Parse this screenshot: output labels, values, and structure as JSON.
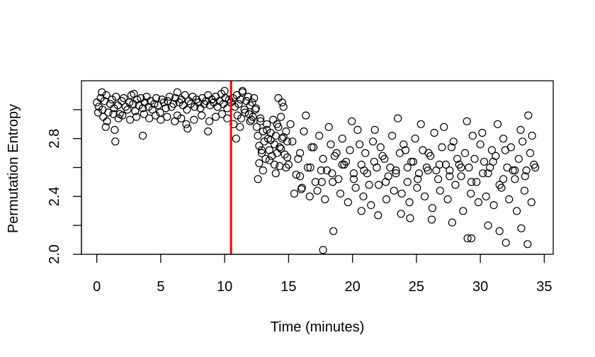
{
  "chart_data": {
    "type": "scatter",
    "title": "",
    "xlabel": "Time (minutes)",
    "ylabel": "Permutation Entropy",
    "xlim": [
      -1.2,
      35.7
    ],
    "ylim": [
      2.0,
      3.2
    ],
    "xticks": [
      0,
      5,
      10,
      15,
      20,
      25,
      30,
      35
    ],
    "yticks": [
      2.0,
      2.2,
      2.4,
      2.6,
      2.8,
      3.0
    ],
    "ytick_labels": [
      {
        "value": 2.0,
        "label": "2.0"
      },
      {
        "value": 2.4,
        "label": "2.4"
      },
      {
        "value": 2.8,
        "label": "2.8"
      }
    ],
    "grid": false,
    "legend": "none",
    "marker": "open-circle",
    "point_color": "#000000",
    "vline": {
      "x": 10.5,
      "color": "#ff0000"
    },
    "series": [
      {
        "x": [
          0.0,
          0.15,
          0.3,
          0.45,
          0.6,
          0.75,
          0.9,
          1.05,
          1.2,
          1.35,
          1.5,
          1.65,
          1.8,
          1.95,
          2.1,
          2.25,
          2.4,
          2.55,
          2.7,
          2.85,
          3.0,
          3.15,
          3.3,
          3.45,
          3.6,
          3.75,
          3.9,
          4.05,
          4.2,
          4.35,
          4.5,
          4.65,
          4.8,
          4.95,
          5.1,
          5.25,
          5.4,
          5.55,
          5.7,
          5.85,
          6.0,
          6.15,
          6.3,
          6.45,
          6.6,
          6.75,
          6.9,
          7.05,
          7.2,
          7.35,
          7.5,
          7.65,
          7.8,
          7.95,
          8.1,
          8.25,
          8.4,
          8.55,
          8.7,
          8.85,
          9.0,
          9.15,
          9.3,
          9.45,
          9.6,
          9.75,
          9.9,
          10.05,
          10.2,
          10.35,
          0.1,
          0.5,
          0.8,
          1.3,
          1.7,
          2.0,
          2.6,
          3.1,
          3.7,
          4.1,
          4.6,
          5.0,
          5.5,
          6.1,
          6.6,
          7.0,
          7.6,
          8.2,
          8.8,
          9.3,
          9.8,
          10.2,
          0.7,
          1.4,
          1.45,
          3.6,
          7.1,
          8.7,
          0.4,
          2.9,
          6.3,
          10.0
        ],
        "y": [
          3.05,
          3.02,
          3.08,
          3.0,
          3.06,
          3.1,
          2.98,
          3.04,
          3.07,
          3.01,
          3.09,
          3.03,
          2.97,
          3.06,
          3.08,
          3.02,
          3.0,
          3.05,
          3.1,
          3.04,
          2.99,
          3.07,
          3.03,
          3.08,
          3.01,
          3.05,
          3.09,
          3.02,
          3.06,
          3.0,
          3.04,
          3.08,
          3.03,
          2.98,
          3.07,
          3.05,
          3.01,
          3.06,
          3.09,
          3.02,
          3.04,
          3.08,
          2.96,
          3.05,
          3.07,
          3.03,
          3.1,
          3.0,
          3.06,
          3.04,
          3.09,
          3.02,
          3.07,
          3.05,
          3.01,
          3.08,
          3.04,
          3.06,
          3.1,
          3.03,
          3.07,
          3.05,
          3.09,
          3.02,
          3.06,
          3.11,
          3.04,
          3.08,
          3.01,
          3.07,
          2.98,
          2.95,
          2.92,
          2.97,
          2.94,
          2.96,
          2.93,
          2.95,
          2.97,
          2.94,
          2.96,
          2.93,
          2.95,
          2.92,
          2.94,
          2.9,
          2.93,
          2.96,
          2.92,
          2.95,
          2.97,
          2.94,
          2.88,
          2.86,
          2.78,
          2.82,
          2.87,
          2.85,
          3.12,
          3.11,
          3.12,
          3.13
        ]
      },
      {
        "x": [
          10.5,
          10.65,
          10.8,
          10.95,
          11.1,
          11.25,
          11.4,
          11.55,
          11.7,
          11.85,
          12.0,
          12.15,
          12.3,
          12.45,
          11.0,
          11.3,
          11.9,
          12.2,
          11.2,
          10.9,
          12.0,
          11.6,
          11.4,
          12.4,
          10.7,
          12.1
        ],
        "y": [
          3.05,
          3.08,
          3.02,
          3.1,
          3.04,
          3.07,
          3.12,
          3.0,
          3.06,
          3.09,
          3.03,
          3.05,
          3.08,
          3.01,
          2.96,
          2.94,
          2.97,
          2.95,
          2.88,
          2.8,
          2.92,
          2.98,
          3.13,
          3.0,
          2.9,
          2.93
        ]
      },
      {
        "x": [
          12.5,
          12.6,
          12.7,
          12.8,
          12.9,
          13.0,
          13.1,
          13.2,
          13.3,
          13.4,
          13.5,
          13.6,
          13.7,
          13.8,
          13.9,
          14.0,
          14.1,
          14.2,
          14.3,
          14.4,
          14.5,
          14.6,
          14.7,
          14.8,
          14.9,
          12.7,
          12.9,
          13.3,
          13.6,
          13.9,
          14.1,
          14.4,
          14.6,
          14.9,
          12.6,
          13.0,
          13.5,
          14.0,
          14.3,
          14.8,
          14.5,
          14.2,
          12.8
        ],
        "y": [
          2.88,
          2.82,
          2.75,
          2.92,
          2.7,
          2.85,
          2.78,
          2.66,
          2.9,
          2.8,
          2.72,
          2.84,
          2.68,
          2.93,
          2.76,
          2.82,
          2.7,
          2.88,
          2.74,
          2.95,
          2.8,
          3.02,
          2.69,
          2.85,
          2.78,
          2.63,
          2.72,
          2.86,
          2.79,
          2.62,
          2.9,
          2.73,
          2.81,
          2.67,
          2.52,
          2.58,
          2.65,
          2.56,
          2.61,
          2.6,
          3.05,
          3.08,
          2.94
        ]
      },
      {
        "x": [
          15.0,
          15.3,
          15.6,
          15.9,
          16.2,
          16.5,
          16.8,
          17.1,
          17.4,
          17.7,
          18.0,
          18.3,
          18.6,
          18.9,
          19.2,
          19.5,
          19.8,
          20.1,
          20.4,
          20.7,
          21.0,
          21.3,
          21.6,
          21.9,
          22.2,
          22.5,
          22.8,
          23.1,
          23.4,
          23.7,
          24.0,
          24.3,
          24.6,
          24.9,
          25.2,
          25.5,
          25.8,
          26.1,
          26.4,
          26.7,
          27.0,
          27.3,
          27.6,
          27.9,
          28.2,
          28.5,
          28.8,
          29.1,
          29.4,
          29.7,
          30.0,
          30.3,
          30.6,
          30.9,
          31.2,
          31.5,
          31.8,
          32.1,
          32.4,
          32.7,
          33.0,
          33.3,
          33.6,
          33.9,
          34.2,
          15.15,
          15.75,
          16.35,
          16.95,
          17.55,
          18.15,
          18.75,
          19.35,
          19.95,
          20.55,
          21.15,
          21.75,
          22.35,
          22.95,
          23.55,
          24.15,
          24.75,
          25.35,
          25.95,
          26.55,
          27.15,
          27.75,
          28.35,
          28.95,
          29.55,
          30.15,
          30.75,
          31.35,
          31.95,
          32.55,
          33.15,
          33.75,
          34.05,
          15.45,
          16.05,
          16.65,
          17.25,
          17.85,
          18.45,
          19.05,
          19.65,
          20.25,
          20.85,
          21.45,
          22.05,
          22.65,
          23.25,
          23.85,
          24.45,
          25.05,
          25.65,
          26.25,
          26.85,
          27.45,
          28.05,
          28.65,
          29.25,
          29.85,
          30.45,
          31.05,
          31.65,
          32.25,
          32.85,
          33.45,
          34.0,
          15.9,
          16.7,
          17.6,
          18.4,
          19.2,
          20.1,
          20.9,
          21.7,
          22.6,
          23.4,
          24.3,
          25.1,
          25.9,
          26.8,
          27.6,
          28.5,
          29.3,
          30.2,
          31.0,
          31.8,
          32.7,
          33.5,
          34.3,
          17.7,
          18.5,
          22.0,
          24.5,
          26.2,
          29.0,
          29.3,
          31.5,
          32.0,
          33.7,
          16.0,
          20.7,
          23.8,
          27.8,
          30.6,
          33.2
        ],
        "y": [
          2.62,
          2.78,
          2.55,
          2.7,
          2.85,
          2.6,
          2.74,
          2.5,
          2.82,
          2.66,
          2.58,
          2.76,
          2.68,
          2.52,
          2.8,
          2.64,
          2.72,
          2.56,
          2.86,
          2.62,
          2.7,
          2.48,
          2.78,
          2.6,
          2.74,
          2.66,
          2.54,
          2.82,
          2.58,
          2.7,
          2.76,
          2.5,
          2.64,
          2.8,
          2.56,
          2.72,
          2.6,
          2.68,
          2.84,
          2.52,
          2.74,
          2.62,
          2.58,
          2.78,
          2.66,
          2.54,
          2.7,
          2.6,
          2.82,
          2.5,
          2.76,
          2.64,
          2.56,
          2.72,
          2.68,
          2.48,
          2.8,
          2.6,
          2.74,
          2.52,
          2.66,
          2.78,
          2.58,
          2.7,
          2.62,
          2.9,
          2.66,
          2.96,
          2.74,
          2.58,
          2.88,
          2.7,
          2.62,
          2.92,
          2.76,
          2.56,
          2.86,
          2.68,
          2.6,
          2.94,
          2.72,
          2.64,
          2.9,
          2.7,
          2.58,
          2.88,
          2.74,
          2.62,
          2.92,
          2.66,
          2.84,
          2.6,
          2.9,
          2.72,
          2.58,
          2.86,
          2.96,
          2.82,
          2.42,
          2.46,
          2.4,
          2.44,
          2.38,
          2.5,
          2.42,
          2.36,
          2.46,
          2.4,
          2.34,
          2.48,
          2.38,
          2.44,
          2.42,
          2.36,
          2.46,
          2.4,
          2.32,
          2.44,
          2.38,
          2.48,
          2.3,
          2.42,
          2.36,
          2.4,
          2.34,
          2.46,
          2.38,
          2.3,
          2.44,
          2.36,
          2.54,
          2.6,
          2.5,
          2.56,
          2.62,
          2.52,
          2.58,
          2.64,
          2.5,
          2.56,
          2.6,
          2.52,
          2.58,
          2.62,
          2.54,
          2.6,
          2.5,
          2.56,
          2.64,
          2.52,
          2.58,
          2.54,
          2.6,
          2.03,
          2.16,
          2.27,
          2.25,
          2.24,
          2.11,
          2.11,
          2.16,
          2.08,
          2.07,
          2.45,
          2.3,
          2.28,
          2.22,
          2.2,
          2.18
        ]
      }
    ]
  }
}
